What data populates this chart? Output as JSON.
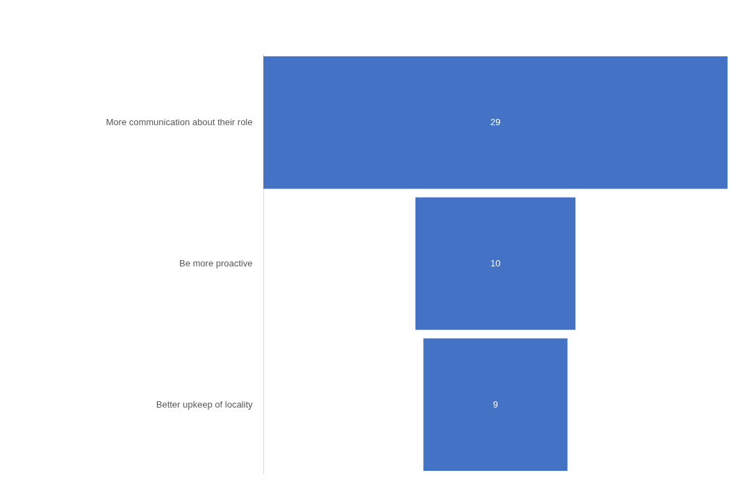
{
  "chart_data": {
    "type": "other",
    "categories": [
      "More communication about their role",
      "Be more proactive",
      "Better upkeep of locality"
    ],
    "values": [
      29,
      10,
      9
    ],
    "color": "#4472c4",
    "data_labels": true
  }
}
